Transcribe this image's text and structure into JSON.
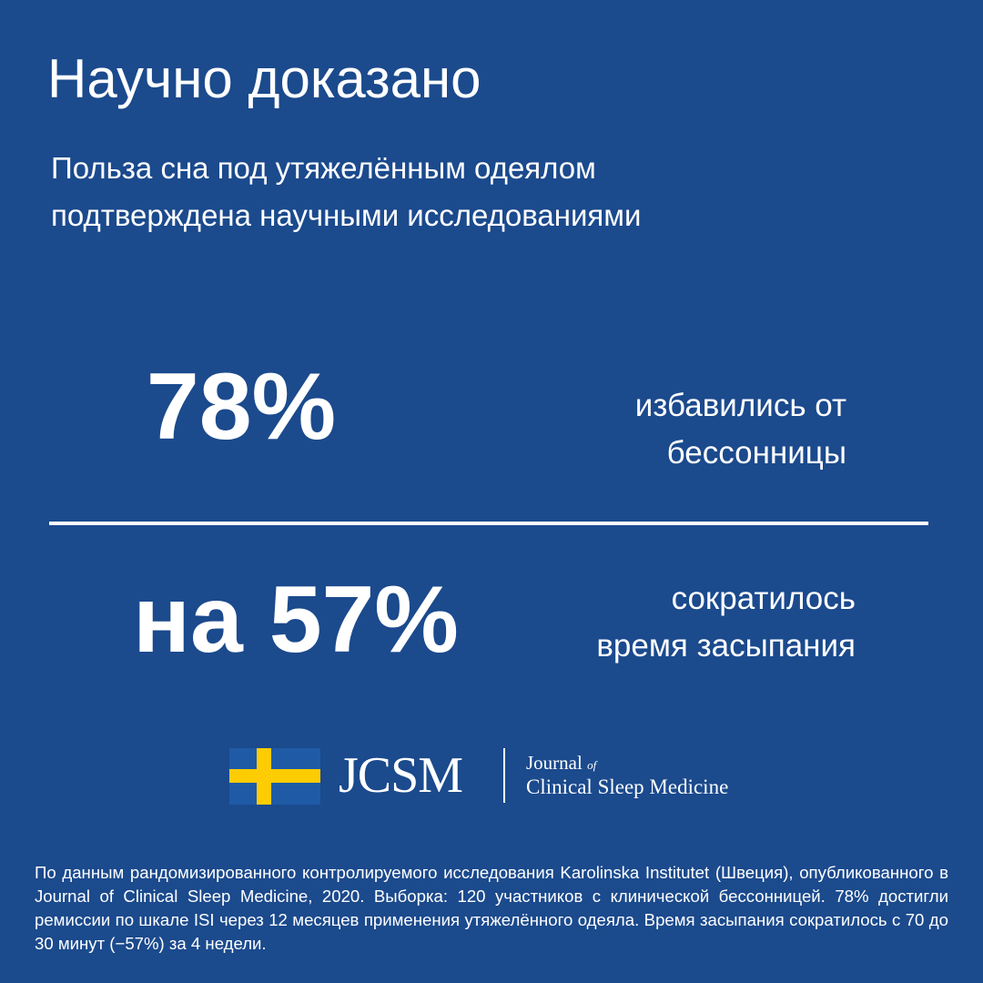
{
  "header": {
    "title": "Научно доказано",
    "subtitle_lines": [
      "Польза сна под утяжелённым одеялом",
      "подтверждена научными исследованиями"
    ]
  },
  "stats": [
    {
      "value": "78%",
      "caption_lines": [
        "избавились от",
        "бессонницы"
      ]
    },
    {
      "value": "на 57%",
      "caption_lines": [
        "сократилось",
        "время засыпания"
      ]
    }
  ],
  "logo": {
    "abbr": "JCSM",
    "journal": "Journal",
    "of": "of",
    "name": "Clinical Sleep Medicine"
  },
  "footnote": "По данным рандомизированного контролируемого исследования Karolinska Institutet (Швеция), опубликованного в Journal of Clinical Sleep Medicine, 2020. Выборка: 120 участников с клинической бессонницей. 78% достигли ремиссии по шкале ISI через 12 месяцев применения утяжелённого одеяла. Время засыпания сократилось с 70 до 30 минут (−57%) за 4 недели."
}
